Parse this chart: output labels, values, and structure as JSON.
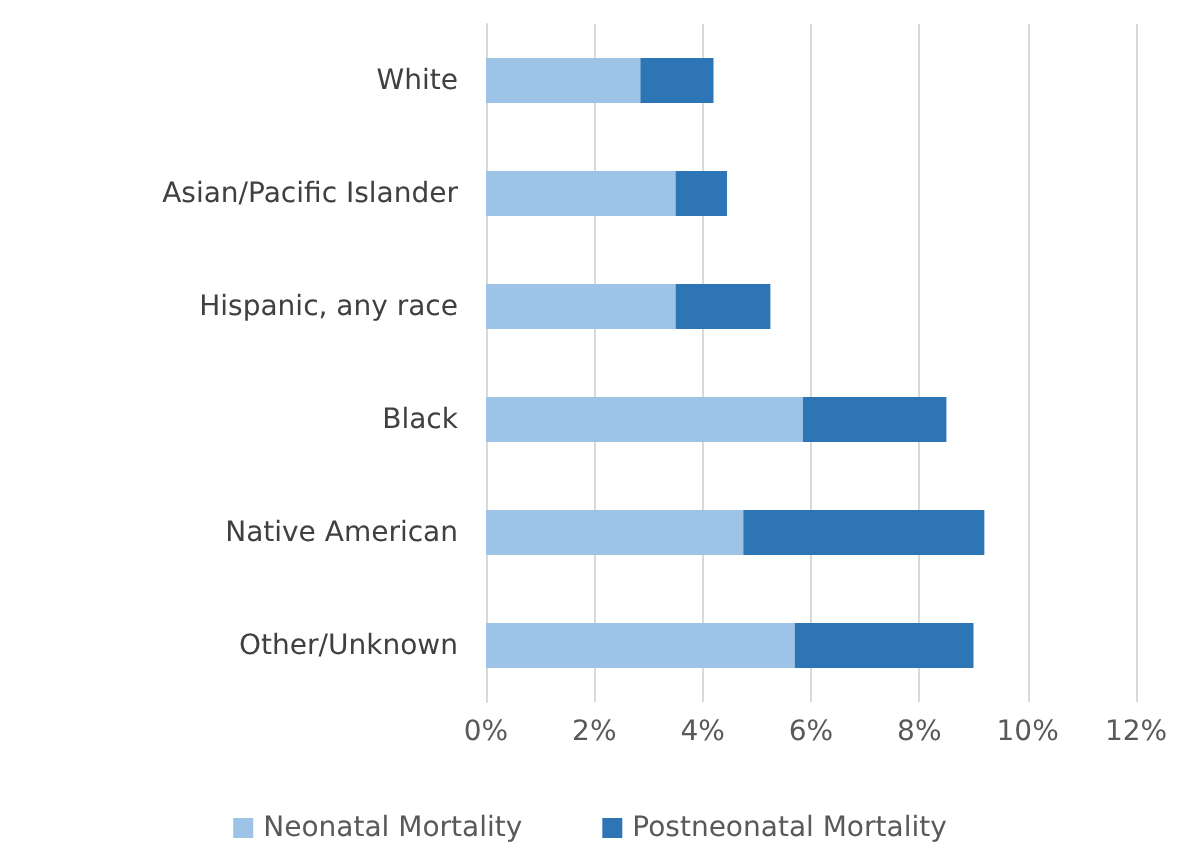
{
  "chart_data": {
    "type": "bar",
    "orientation": "horizontal",
    "stacked": true,
    "categories": [
      "White",
      "Asian/Pacific Islander",
      "Hispanic, any race",
      "Black",
      "Native American",
      "Other/Unknown"
    ],
    "series": [
      {
        "name": "Neonatal Mortality",
        "color": "#9dc3e6",
        "values": [
          2.85,
          3.5,
          3.5,
          5.85,
          4.75,
          5.7
        ]
      },
      {
        "name": "Postneonatal Mortality",
        "color": "#2e75b6",
        "values": [
          1.35,
          0.95,
          1.75,
          2.65,
          4.45,
          3.3
        ]
      }
    ],
    "xlim": [
      0,
      12
    ],
    "xticks": [
      {
        "value": 0,
        "label": "0%"
      },
      {
        "value": 2,
        "label": "2%"
      },
      {
        "value": 4,
        "label": "4%"
      },
      {
        "value": 6,
        "label": "6%"
      },
      {
        "value": 8,
        "label": "8%"
      },
      {
        "value": 10,
        "label": "10%"
      },
      {
        "value": 12,
        "label": "12%"
      }
    ],
    "grid": "x",
    "legend": "bottom"
  }
}
